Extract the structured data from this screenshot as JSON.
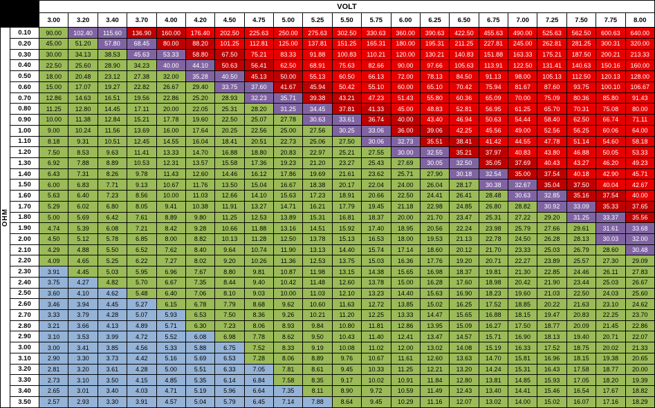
{
  "chart_data": {
    "type": "heatmap",
    "top_axis_label": "VOLT",
    "left_axis_label": "OHM",
    "value_label": "watts",
    "volts": [
      "3.00",
      "3.20",
      "3.40",
      "3.70",
      "4.00",
      "4.20",
      "4.50",
      "4.75",
      "5.00",
      "5.25",
      "5.50",
      "5.75",
      "6.00",
      "6.25",
      "6.50",
      "6.75",
      "7.00",
      "7.25",
      "7.50",
      "7.75",
      "8.00"
    ],
    "ohms": [
      "0.10",
      "0.20",
      "0.30",
      "0.40",
      "0.50",
      "0.60",
      "0.70",
      "0.80",
      "0.90",
      "1.00",
      "1.10",
      "1.20",
      "1.30",
      "1.40",
      "1.50",
      "1.60",
      "1.70",
      "1.80",
      "1.90",
      "2.00",
      "2.10",
      "2.20",
      "2.30",
      "2.40",
      "2.50",
      "2.60",
      "2.70",
      "2.80",
      "2.90",
      "3.00",
      "3.10",
      "3.20",
      "3.30",
      "3.40",
      "3.50"
    ],
    "watts": [
      [
        "90.00",
        "102.40",
        "115.60",
        "136.90",
        "160.00",
        "176.40",
        "202.50",
        "225.63",
        "250.00",
        "275.63",
        "302.50",
        "330.63",
        "360.00",
        "390.63",
        "422.50",
        "455.63",
        "490.00",
        "525.63",
        "562.50",
        "600.63",
        "640.00"
      ],
      [
        "45.00",
        "51.20",
        "57.80",
        "68.45",
        "80.00",
        "88.20",
        "101.25",
        "112.81",
        "125.00",
        "137.81",
        "151.25",
        "165.31",
        "180.00",
        "195.31",
        "211.25",
        "227.81",
        "245.00",
        "262.81",
        "281.25",
        "300.31",
        "320.00"
      ],
      [
        "30.00",
        "34.13",
        "38.53",
        "45.63",
        "53.33",
        "58.80",
        "67.50",
        "75.21",
        "83.33",
        "91.88",
        "100.83",
        "110.21",
        "120.00",
        "130.21",
        "140.83",
        "151.88",
        "163.33",
        "175.21",
        "187.50",
        "200.21",
        "213.33"
      ],
      [
        "22.50",
        "25.60",
        "28.90",
        "34.23",
        "40.00",
        "44.10",
        "50.63",
        "56.41",
        "62.50",
        "68.91",
        "75.63",
        "82.66",
        "90.00",
        "97.66",
        "105.63",
        "113.91",
        "122.50",
        "131.41",
        "140.63",
        "150.16",
        "160.00"
      ],
      [
        "18.00",
        "20.48",
        "23.12",
        "27.38",
        "32.00",
        "35.28",
        "40.50",
        "45.13",
        "50.00",
        "55.13",
        "60.50",
        "66.13",
        "72.00",
        "78.13",
        "84.50",
        "91.13",
        "98.00",
        "105.13",
        "112.50",
        "120.13",
        "128.00"
      ],
      [
        "15.00",
        "17.07",
        "19.27",
        "22.82",
        "26.67",
        "29.40",
        "33.75",
        "37.60",
        "41.67",
        "45.94",
        "50.42",
        "55.10",
        "60.00",
        "65.10",
        "70.42",
        "75.94",
        "81.67",
        "87.60",
        "93.75",
        "100.10",
        "106.67"
      ],
      [
        "12.86",
        "14.63",
        "16.51",
        "19.56",
        "22.86",
        "25.20",
        "28.93",
        "32.23",
        "35.71",
        "39.38",
        "43.21",
        "47.23",
        "51.43",
        "55.80",
        "60.36",
        "65.09",
        "70.00",
        "75.09",
        "80.36",
        "85.80",
        "91.43"
      ],
      [
        "11.25",
        "12.80",
        "14.45",
        "17.11",
        "20.00",
        "22.05",
        "25.31",
        "28.20",
        "31.25",
        "34.45",
        "37.81",
        "41.33",
        "45.00",
        "48.83",
        "52.81",
        "56.95",
        "61.25",
        "65.70",
        "70.31",
        "75.08",
        "80.00"
      ],
      [
        "10.00",
        "11.38",
        "12.84",
        "15.21",
        "17.78",
        "19.60",
        "22.50",
        "25.07",
        "27.78",
        "30.63",
        "33.61",
        "36.74",
        "40.00",
        "43.40",
        "46.94",
        "50.63",
        "54.44",
        "58.40",
        "62.50",
        "66.74",
        "71.11"
      ],
      [
        "9.00",
        "10.24",
        "11.56",
        "13.69",
        "16.00",
        "17.64",
        "20.25",
        "22.56",
        "25.00",
        "27.56",
        "30.25",
        "33.06",
        "36.00",
        "39.06",
        "42.25",
        "45.56",
        "49.00",
        "52.56",
        "56.25",
        "60.06",
        "64.00"
      ],
      [
        "8.18",
        "9.31",
        "10.51",
        "12.45",
        "14.55",
        "16.04",
        "18.41",
        "20.51",
        "22.73",
        "25.06",
        "27.50",
        "30.06",
        "32.73",
        "35.51",
        "38.41",
        "41.42",
        "44.55",
        "47.78",
        "51.14",
        "54.60",
        "58.18"
      ],
      [
        "7.50",
        "8.53",
        "9.63",
        "11.41",
        "13.33",
        "14.70",
        "16.88",
        "18.80",
        "20.83",
        "22.97",
        "25.21",
        "27.55",
        "30.00",
        "32.55",
        "35.21",
        "37.97",
        "40.83",
        "43.80",
        "46.88",
        "50.05",
        "53.33"
      ],
      [
        "6.92",
        "7.88",
        "8.89",
        "10.53",
        "12.31",
        "13.57",
        "15.58",
        "17.36",
        "19.23",
        "21.20",
        "23.27",
        "25.43",
        "27.69",
        "30.05",
        "32.50",
        "35.05",
        "37.69",
        "40.43",
        "43.27",
        "46.20",
        "49.23"
      ],
      [
        "6.43",
        "7.31",
        "8.26",
        "9.78",
        "11.43",
        "12.60",
        "14.46",
        "16.12",
        "17.86",
        "19.69",
        "21.61",
        "23.62",
        "25.71",
        "27.90",
        "30.18",
        "32.54",
        "35.00",
        "37.54",
        "40.18",
        "42.90",
        "45.71"
      ],
      [
        "6.00",
        "6.83",
        "7.71",
        "9.13",
        "10.67",
        "11.76",
        "13.50",
        "15.04",
        "16.67",
        "18.38",
        "20.17",
        "22.04",
        "24.00",
        "26.04",
        "28.17",
        "30.38",
        "32.67",
        "35.04",
        "37.50",
        "40.04",
        "42.67"
      ],
      [
        "5.63",
        "6.40",
        "7.23",
        "8.56",
        "10.00",
        "11.03",
        "12.66",
        "14.10",
        "15.63",
        "17.23",
        "18.91",
        "20.66",
        "22.50",
        "24.41",
        "26.41",
        "28.48",
        "30.63",
        "32.85",
        "35.16",
        "37.54",
        "40.00"
      ],
      [
        "5.29",
        "6.02",
        "6.80",
        "8.05",
        "9.41",
        "10.38",
        "11.91",
        "13.27",
        "14.71",
        "16.21",
        "17.79",
        "19.45",
        "21.18",
        "22.98",
        "24.85",
        "26.80",
        "28.82",
        "30.92",
        "33.09",
        "35.33",
        "37.65"
      ],
      [
        "5.00",
        "5.69",
        "6.42",
        "7.61",
        "8.89",
        "9.80",
        "11.25",
        "12.53",
        "13.89",
        "15.31",
        "16.81",
        "18.37",
        "20.00",
        "21.70",
        "23.47",
        "25.31",
        "27.22",
        "29.20",
        "31.25",
        "33.37",
        "35.56"
      ],
      [
        "4.74",
        "5.39",
        "6.08",
        "7.21",
        "8.42",
        "9.28",
        "10.66",
        "11.88",
        "13.16",
        "14.51",
        "15.92",
        "17.40",
        "18.95",
        "20.56",
        "22.24",
        "23.98",
        "25.79",
        "27.66",
        "29.61",
        "31.61",
        "33.68"
      ],
      [
        "4.50",
        "5.12",
        "5.78",
        "6.85",
        "8.00",
        "8.82",
        "10.13",
        "11.28",
        "12.50",
        "13.78",
        "15.13",
        "16.53",
        "18.00",
        "19.53",
        "21.13",
        "22.78",
        "24.50",
        "26.28",
        "28.13",
        "30.03",
        "32.00"
      ],
      [
        "4.29",
        "4.88",
        "5.50",
        "6.52",
        "7.62",
        "8.40",
        "9.64",
        "10.74",
        "11.90",
        "13.13",
        "14.40",
        "15.74",
        "17.14",
        "18.60",
        "20.12",
        "21.70",
        "23.33",
        "25.03",
        "26.79",
        "28.60",
        "30.48"
      ],
      [
        "4.09",
        "4.65",
        "5.25",
        "6.22",
        "7.27",
        "8.02",
        "9.20",
        "10.26",
        "11.36",
        "12.53",
        "13.75",
        "15.03",
        "16.36",
        "17.76",
        "19.20",
        "20.71",
        "22.27",
        "23.89",
        "25.57",
        "27.30",
        "29.09"
      ],
      [
        "3.91",
        "4.45",
        "5.03",
        "5.95",
        "6.96",
        "7.67",
        "8.80",
        "9.81",
        "10.87",
        "11.98",
        "13.15",
        "14.38",
        "15.65",
        "16.98",
        "18.37",
        "19.81",
        "21.30",
        "22.85",
        "24.46",
        "26.11",
        "27.83"
      ],
      [
        "3.75",
        "4.27",
        "4.82",
        "5.70",
        "6.67",
        "7.35",
        "8.44",
        "9.40",
        "10.42",
        "11.48",
        "12.60",
        "13.78",
        "15.00",
        "16.28",
        "17.60",
        "18.98",
        "20.42",
        "21.90",
        "23.44",
        "25.03",
        "26.67"
      ],
      [
        "3.60",
        "4.10",
        "4.62",
        "5.48",
        "6.40",
        "7.06",
        "8.10",
        "9.03",
        "10.00",
        "11.03",
        "12.10",
        "13.23",
        "14.40",
        "15.63",
        "16.90",
        "18.23",
        "19.60",
        "21.03",
        "22.50",
        "24.03",
        "25.60"
      ],
      [
        "3.46",
        "3.94",
        "4.45",
        "5.27",
        "6.15",
        "6.78",
        "7.79",
        "8.68",
        "9.62",
        "10.60",
        "11.63",
        "12.72",
        "13.85",
        "15.02",
        "16.25",
        "17.52",
        "18.85",
        "20.22",
        "21.63",
        "23.10",
        "24.62"
      ],
      [
        "3.33",
        "3.79",
        "4.28",
        "5.07",
        "5.93",
        "6.53",
        "7.50",
        "8.36",
        "9.26",
        "10.21",
        "11.20",
        "12.25",
        "13.33",
        "14.47",
        "15.65",
        "16.88",
        "18.15",
        "19.47",
        "20.83",
        "22.25",
        "23.70"
      ],
      [
        "3.21",
        "3.66",
        "4.13",
        "4.89",
        "5.71",
        "6.30",
        "7.23",
        "8.06",
        "8.93",
        "9.84",
        "10.80",
        "11.81",
        "12.86",
        "13.95",
        "15.09",
        "16.27",
        "17.50",
        "18.77",
        "20.09",
        "21.45",
        "22.86"
      ],
      [
        "3.10",
        "3.53",
        "3.99",
        "4.72",
        "5.52",
        "6.08",
        "6.98",
        "7.78",
        "8.62",
        "9.50",
        "10.43",
        "11.40",
        "12.41",
        "13.47",
        "14.57",
        "15.71",
        "16.90",
        "18.13",
        "19.40",
        "20.71",
        "22.07"
      ],
      [
        "3.00",
        "3.41",
        "3.85",
        "4.56",
        "5.33",
        "5.88",
        "6.75",
        "7.52",
        "8.33",
        "9.19",
        "10.08",
        "11.02",
        "12.00",
        "13.02",
        "14.08",
        "15.19",
        "16.33",
        "17.52",
        "18.75",
        "20.02",
        "21.33"
      ],
      [
        "2.90",
        "3.30",
        "3.73",
        "4.42",
        "5.16",
        "5.69",
        "6.53",
        "7.28",
        "8.06",
        "8.89",
        "9.76",
        "10.67",
        "11.61",
        "12.60",
        "13.63",
        "14.70",
        "15.81",
        "16.96",
        "18.15",
        "19.38",
        "20.65"
      ],
      [
        "2.81",
        "3.20",
        "3.61",
        "4.28",
        "5.00",
        "5.51",
        "6.33",
        "7.05",
        "7.81",
        "8.61",
        "9.45",
        "10.33",
        "11.25",
        "12.21",
        "13.20",
        "14.24",
        "15.31",
        "16.43",
        "17.58",
        "18.77",
        "20.00"
      ],
      [
        "2.73",
        "3.10",
        "3.50",
        "4.15",
        "4.85",
        "5.35",
        "6.14",
        "6.84",
        "7.58",
        "8.35",
        "9.17",
        "10.02",
        "10.91",
        "11.84",
        "12.80",
        "13.81",
        "14.85",
        "15.93",
        "17.05",
        "18.20",
        "19.39"
      ],
      [
        "2.65",
        "3.01",
        "3.40",
        "4.03",
        "4.71",
        "5.19",
        "5.96",
        "6.64",
        "7.35",
        "8.11",
        "8.90",
        "9.72",
        "10.59",
        "11.49",
        "12.43",
        "13.40",
        "14.41",
        "15.46",
        "16.54",
        "17.67",
        "18.82"
      ],
      [
        "2.57",
        "2.93",
        "3.30",
        "3.91",
        "4.57",
        "5.04",
        "5.79",
        "6.45",
        "7.14",
        "7.88",
        "8.64",
        "9.45",
        "10.29",
        "11.16",
        "12.07",
        "13.02",
        "14.00",
        "15.02",
        "16.07",
        "17.16",
        "18.29"
      ]
    ],
    "zones": [
      {
        "b": 0,
        "p": [
          2,
          3
        ],
        "d": [
          4,
          5
        ],
        "r": [
          6,
          21
        ]
      },
      {
        "b": 0,
        "p": [
          3,
          4
        ],
        "d": [
          5,
          6
        ],
        "r": [
          7,
          21
        ]
      },
      {
        "b": 0,
        "p": [
          4,
          5
        ],
        "d": [
          6,
          7
        ],
        "r": [
          8,
          21
        ]
      },
      {
        "b": 0,
        "p": [
          5,
          6
        ],
        "d": [
          7,
          8
        ],
        "r": [
          9,
          21
        ]
      },
      {
        "b": 0,
        "p": [
          6,
          7
        ],
        "d": [
          8,
          9
        ],
        "r": [
          10,
          21
        ]
      },
      {
        "b": 0,
        "p": [
          7,
          8
        ],
        "d": [
          9,
          10
        ],
        "r": [
          11,
          21
        ]
      },
      {
        "b": 0,
        "p": [
          8,
          9
        ],
        "d": [
          10,
          11
        ],
        "r": [
          12,
          21
        ]
      },
      {
        "b": 0,
        "p": [
          9,
          10
        ],
        "d": [
          11,
          12
        ],
        "r": [
          13,
          21
        ]
      },
      {
        "b": 0,
        "p": [
          10,
          11
        ],
        "d": [
          12,
          13
        ],
        "r": [
          14,
          21
        ]
      },
      {
        "b": 0,
        "p": [
          11,
          12
        ],
        "d": [
          13,
          14
        ],
        "r": [
          15,
          21
        ]
      },
      {
        "b": 0,
        "p": [
          12,
          13
        ],
        "d": [
          14,
          15
        ],
        "r": [
          16,
          21
        ]
      },
      {
        "b": 0,
        "p": [
          13,
          14
        ],
        "d": [
          15,
          16
        ],
        "r": [
          17,
          21
        ]
      },
      {
        "b": 0,
        "p": [
          14,
          15
        ],
        "d": [
          16,
          17
        ],
        "r": [
          18,
          21
        ]
      },
      {
        "b": 0,
        "p": [
          15,
          16
        ],
        "d": [
          17,
          18
        ],
        "r": [
          19,
          21
        ]
      },
      {
        "b": 0,
        "p": [
          16,
          17
        ],
        "d": [
          18,
          19
        ],
        "r": [
          20,
          21
        ]
      },
      {
        "b": 0,
        "p": [
          17,
          18
        ],
        "d": [
          19,
          20
        ],
        "r": [
          21,
          21
        ]
      },
      {
        "b": 0,
        "p": [
          18,
          19
        ],
        "d": [
          20,
          21
        ],
        "r": null
      },
      {
        "b": 0,
        "p": [
          19,
          20
        ],
        "d": [
          21,
          21
        ],
        "r": null
      },
      {
        "b": 0,
        "p": [
          20,
          21
        ],
        "d": null,
        "r": null
      },
      {
        "b": 0,
        "p": [
          20,
          21
        ],
        "d": null,
        "r": null
      },
      {
        "b": 0,
        "p": [
          21,
          21
        ],
        "d": null,
        "r": null
      },
      {
        "b": 0,
        "p": null,
        "d": null,
        "r": null
      },
      {
        "b": 1,
        "p": null,
        "d": null,
        "r": null
      },
      {
        "b": 2,
        "p": null,
        "d": null,
        "r": null
      },
      {
        "b": 3,
        "p": null,
        "d": null,
        "r": null
      },
      {
        "b": 4,
        "p": null,
        "d": null,
        "r": null
      },
      {
        "b": 5,
        "p": null,
        "d": null,
        "r": null
      },
      {
        "b": 5,
        "p": null,
        "d": null,
        "r": null
      },
      {
        "b": 6,
        "p": null,
        "d": null,
        "r": null
      },
      {
        "b": 7,
        "p": null,
        "d": null,
        "r": null
      },
      {
        "b": 7,
        "p": null,
        "d": null,
        "r": null
      },
      {
        "b": 8,
        "p": null,
        "d": null,
        "r": null
      },
      {
        "b": 8,
        "p": null,
        "d": null,
        "r": null
      },
      {
        "b": 9,
        "p": null,
        "d": null,
        "r": null
      },
      {
        "b": 10,
        "p": null,
        "d": null,
        "r": null
      }
    ],
    "colors": {
      "blue": "#95B3D7",
      "green": "#9BBB59",
      "purple": "#8064A2",
      "dark_red": "#BF0000",
      "red": "#E60000",
      "corner": "#000000",
      "header_bg": "#FFFFFF",
      "grid": "#000000"
    }
  }
}
